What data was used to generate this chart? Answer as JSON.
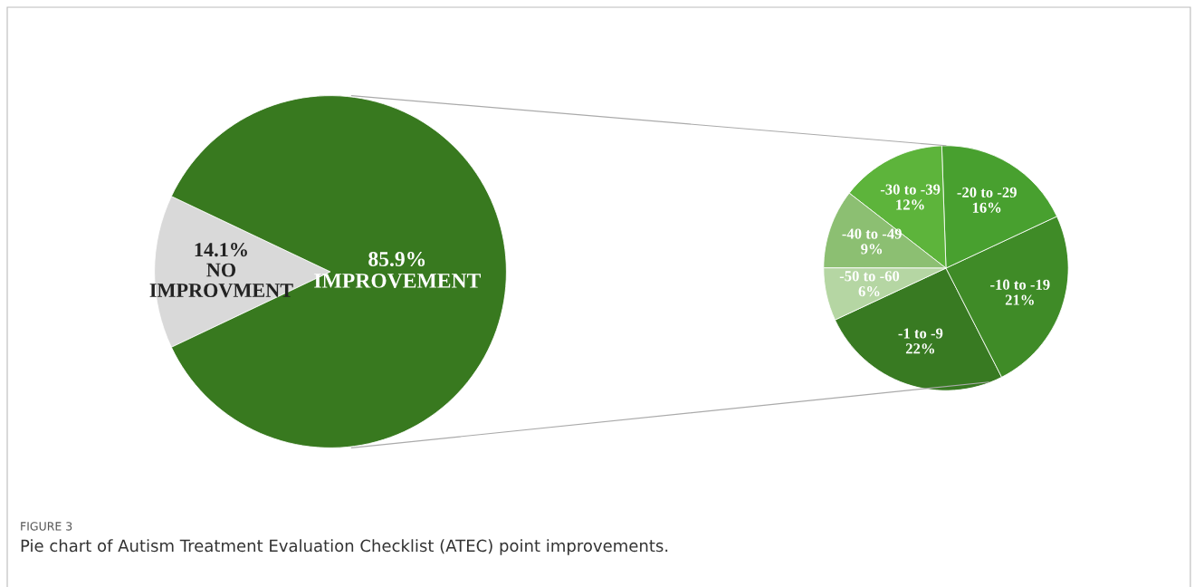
{
  "chart_data": [
    {
      "type": "pie",
      "categories": [
        "NO IMPROVMENT",
        "IMPROVEMENT"
      ],
      "values": [
        14.1,
        85.9
      ],
      "value_labels": [
        "14.1%",
        "85.9%"
      ],
      "colors": [
        "#d9d9d9",
        "#38791f"
      ],
      "annotations": [
        "FIGURE 3",
        "Pie chart of Autism Treatment Evaluation Checklist (ATEC) point improvements."
      ]
    },
    {
      "type": "pie",
      "categories": [
        "-1 to -9",
        "-10 to -19",
        "-20 to -29",
        "-30 to -39",
        "-40 to -49",
        "-50 to -60"
      ],
      "values": [
        22,
        21,
        16,
        12,
        9,
        6
      ],
      "value_labels": [
        "22%",
        "21%",
        "16%",
        "12%",
        "9%",
        "6%"
      ],
      "colors": [
        "#387a22",
        "#3f8b27",
        "#48a02f",
        "#5db43b",
        "#8cbf72",
        "#b5d6a3"
      ]
    }
  ]
}
